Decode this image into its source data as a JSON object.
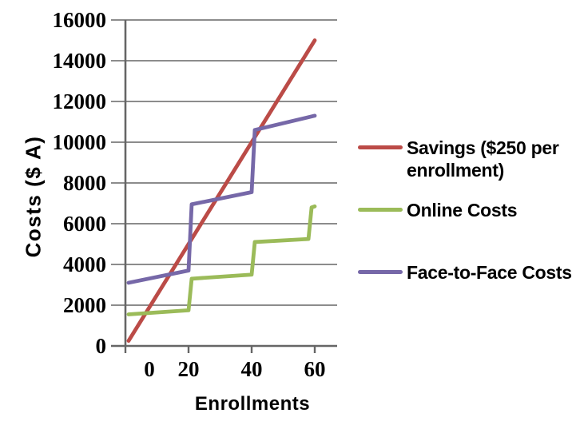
{
  "chart_data": {
    "type": "line",
    "title": "",
    "xlabel": "Enrollments",
    "ylabel": "Costs ($ A)",
    "xlim": [
      0,
      67
    ],
    "ylim": [
      0,
      16000
    ],
    "x_ticks": [
      0,
      20,
      40,
      60
    ],
    "y_ticks": [
      0,
      2000,
      4000,
      6000,
      8000,
      10000,
      12000,
      14000,
      16000
    ],
    "grid": "horizontal-only",
    "legend_position": "right",
    "series": [
      {
        "name": "Savings ($250 per enrollment)",
        "color": "#BB4B47",
        "points": [
          [
            1,
            250
          ],
          [
            60,
            15000
          ]
        ]
      },
      {
        "name": "Online Costs",
        "color": "#9BBB59",
        "points": [
          [
            1,
            1550
          ],
          [
            20,
            1750
          ],
          [
            21,
            3300
          ],
          [
            40,
            3500
          ],
          [
            41,
            5100
          ],
          [
            58,
            5250
          ],
          [
            59,
            6800
          ],
          [
            60,
            6850
          ]
        ]
      },
      {
        "name": "Face-to-Face Costs",
        "color": "#7668A8",
        "points": [
          [
            1,
            3100
          ],
          [
            20,
            3700
          ],
          [
            21,
            6950
          ],
          [
            40,
            7550
          ],
          [
            41,
            10600
          ],
          [
            60,
            11300
          ]
        ]
      }
    ]
  },
  "colors": {
    "gridline": "#8c8c8c",
    "axis": "#666666",
    "text": "#000000",
    "background": "#ffffff"
  }
}
